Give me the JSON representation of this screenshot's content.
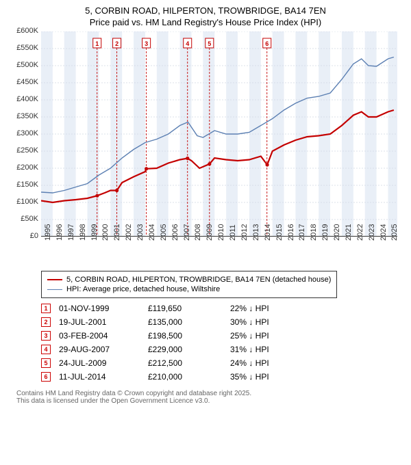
{
  "title_line1": "5, CORBIN ROAD, HILPERTON, TROWBRIDGE, BA14 7EN",
  "title_line2": "Price paid vs. HM Land Registry's House Price Index (HPI)",
  "chart": {
    "type": "line",
    "background_color": "#ffffff",
    "grid_color": "#cfd8e3",
    "grid_dash": "2,2",
    "band_color": "#e9eff7",
    "axis_color": "#333333",
    "label_fontsize": 11,
    "ylim": [
      0,
      600000
    ],
    "ytick_step": 50000,
    "ytick_labels": [
      "£0",
      "£50K",
      "£100K",
      "£150K",
      "£200K",
      "£250K",
      "£300K",
      "£350K",
      "£400K",
      "£450K",
      "£500K",
      "£550K",
      "£600K"
    ],
    "xlim": [
      1995,
      2025.8
    ],
    "xticks": [
      1995,
      1996,
      1997,
      1998,
      1999,
      2000,
      2001,
      2002,
      2003,
      2004,
      2005,
      2006,
      2007,
      2008,
      2009,
      2010,
      2011,
      2012,
      2013,
      2014,
      2015,
      2016,
      2017,
      2018,
      2019,
      2020,
      2021,
      2022,
      2023,
      2024,
      2025
    ],
    "bands": [
      [
        1995,
        1996
      ],
      [
        1997,
        1998
      ],
      [
        1999,
        2000
      ],
      [
        2001,
        2002
      ],
      [
        2003,
        2004
      ],
      [
        2005,
        2006
      ],
      [
        2007,
        2008
      ],
      [
        2009,
        2010
      ],
      [
        2011,
        2012
      ],
      [
        2013,
        2014
      ],
      [
        2015,
        2016
      ],
      [
        2017,
        2018
      ],
      [
        2019,
        2020
      ],
      [
        2021,
        2022
      ],
      [
        2023,
        2024
      ],
      [
        2025,
        2025.8
      ]
    ],
    "series_hpi": {
      "color": "#5b7fb2",
      "width": 1.4,
      "points": [
        [
          1995,
          130000
        ],
        [
          1996,
          128000
        ],
        [
          1997,
          135000
        ],
        [
          1998,
          145000
        ],
        [
          1999,
          155000
        ],
        [
          2000,
          180000
        ],
        [
          2001,
          200000
        ],
        [
          2002,
          230000
        ],
        [
          2003,
          255000
        ],
        [
          2004,
          275000
        ],
        [
          2005,
          285000
        ],
        [
          2006,
          300000
        ],
        [
          2007,
          325000
        ],
        [
          2007.7,
          335000
        ],
        [
          2008.5,
          295000
        ],
        [
          2009,
          290000
        ],
        [
          2010,
          310000
        ],
        [
          2011,
          300000
        ],
        [
          2012,
          300000
        ],
        [
          2013,
          305000
        ],
        [
          2014,
          325000
        ],
        [
          2015,
          345000
        ],
        [
          2016,
          370000
        ],
        [
          2017,
          390000
        ],
        [
          2018,
          405000
        ],
        [
          2019,
          410000
        ],
        [
          2020,
          420000
        ],
        [
          2021,
          460000
        ],
        [
          2022,
          505000
        ],
        [
          2022.7,
          520000
        ],
        [
          2023.3,
          500000
        ],
        [
          2024,
          498000
        ],
        [
          2025,
          520000
        ],
        [
          2025.5,
          525000
        ]
      ]
    },
    "series_sold": {
      "color": "#c40000",
      "width": 2.2,
      "points": [
        [
          1995,
          105000
        ],
        [
          1996,
          100000
        ],
        [
          1997,
          105000
        ],
        [
          1998,
          108000
        ],
        [
          1999,
          112000
        ],
        [
          1999.85,
          119650
        ],
        [
          2000.5,
          128000
        ],
        [
          2001,
          135000
        ],
        [
          2001.55,
          135000
        ],
        [
          2002,
          158000
        ],
        [
          2003,
          175000
        ],
        [
          2004,
          190000
        ],
        [
          2004.1,
          198500
        ],
        [
          2005,
          200000
        ],
        [
          2006,
          215000
        ],
        [
          2007,
          225000
        ],
        [
          2007.66,
          229000
        ],
        [
          2008,
          222000
        ],
        [
          2008.7,
          200000
        ],
        [
          2009.56,
          212500
        ],
        [
          2010,
          230000
        ],
        [
          2011,
          225000
        ],
        [
          2012,
          222000
        ],
        [
          2013,
          225000
        ],
        [
          2014,
          235000
        ],
        [
          2014.55,
          210000
        ],
        [
          2015,
          250000
        ],
        [
          2016,
          268000
        ],
        [
          2017,
          282000
        ],
        [
          2018,
          292000
        ],
        [
          2019,
          295000
        ],
        [
          2020,
          300000
        ],
        [
          2021,
          325000
        ],
        [
          2022,
          355000
        ],
        [
          2022.7,
          365000
        ],
        [
          2023.3,
          350000
        ],
        [
          2024,
          350000
        ],
        [
          2025,
          365000
        ],
        [
          2025.5,
          370000
        ]
      ]
    },
    "sale_markers": [
      {
        "n": "1",
        "year": 1999.84
      },
      {
        "n": "2",
        "year": 2001.55
      },
      {
        "n": "3",
        "year": 2004.1
      },
      {
        "n": "4",
        "year": 2007.66
      },
      {
        "n": "5",
        "year": 2009.56
      },
      {
        "n": "6",
        "year": 2014.53
      }
    ],
    "marker_color": "#c40000",
    "marker_fontsize": 9
  },
  "legend": {
    "sold_label": "5, CORBIN ROAD, HILPERTON, TROWBRIDGE, BA14 7EN (detached house)",
    "hpi_label": "HPI: Average price, detached house, Wiltshire"
  },
  "sales": [
    {
      "n": "1",
      "date": "01-NOV-1999",
      "price": "£119,650",
      "delta": "22% ↓ HPI"
    },
    {
      "n": "2",
      "date": "19-JUL-2001",
      "price": "£135,000",
      "delta": "30% ↓ HPI"
    },
    {
      "n": "3",
      "date": "03-FEB-2004",
      "price": "£198,500",
      "delta": "25% ↓ HPI"
    },
    {
      "n": "4",
      "date": "29-AUG-2007",
      "price": "£229,000",
      "delta": "31% ↓ HPI"
    },
    {
      "n": "5",
      "date": "24-JUL-2009",
      "price": "£212,500",
      "delta": "24% ↓ HPI"
    },
    {
      "n": "6",
      "date": "11-JUL-2014",
      "price": "£210,000",
      "delta": "35% ↓ HPI"
    }
  ],
  "footnote_l1": "Contains HM Land Registry data © Crown copyright and database right 2025.",
  "footnote_l2": "This data is licensed under the Open Government Licence v3.0."
}
